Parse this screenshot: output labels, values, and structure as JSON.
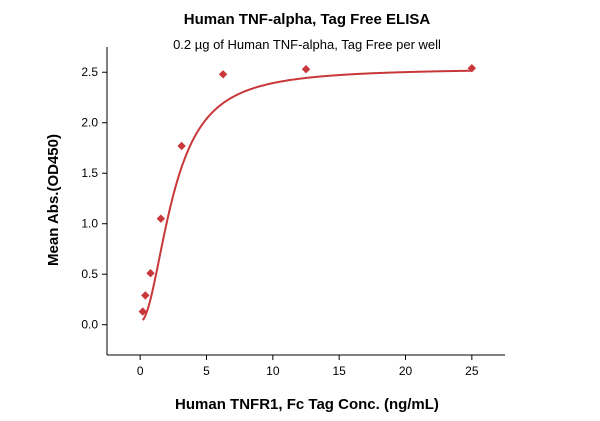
{
  "chart_data": {
    "type": "scatter",
    "title": "Human TNF-alpha, Tag Free ELISA",
    "subtitle": "0.2 µg of Human TNF-alpha, Tag Free per well",
    "xlabel": "Human TNFR1, Fc Tag Conc. (ng/mL)",
    "ylabel": "Mean Abs.(OD450)",
    "xlim": [
      -2.5,
      27.5
    ],
    "ylim": [
      -0.3,
      2.75
    ],
    "xticks": [
      0,
      5,
      10,
      15,
      20,
      25
    ],
    "yticks": [
      0.0,
      0.5,
      1.0,
      1.5,
      2.0,
      2.5
    ],
    "xtick_labels": [
      "0",
      "5",
      "10",
      "15",
      "20",
      "25"
    ],
    "ytick_labels": [
      "0.0",
      "0.5",
      "1.0",
      "1.5",
      "2.0",
      "2.5"
    ],
    "grid": false,
    "series": [
      {
        "marker_color": "#c8373a",
        "line_color": "#c8373a",
        "x": [
          0.195,
          0.39,
          0.78,
          1.56,
          3.125,
          6.25,
          12.5,
          25
        ],
        "y": [
          0.13,
          0.29,
          0.51,
          1.05,
          1.77,
          2.48,
          2.53,
          2.54
        ],
        "fit": {
          "model": "4PL",
          "A": 0.03,
          "D": 2.54,
          "C": 2.5,
          "B": 2.0
        }
      }
    ]
  }
}
